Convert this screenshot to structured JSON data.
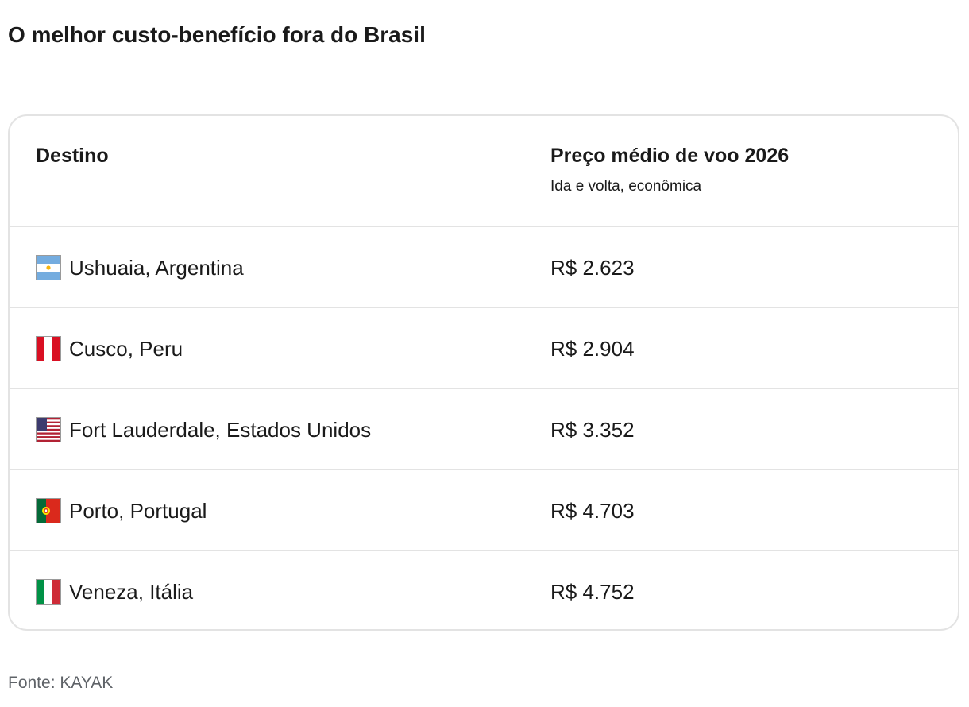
{
  "title": "O melhor custo-benefício fora do Brasil",
  "table": {
    "headers": {
      "destination": "Destino",
      "price": "Preço médio de voo 2026",
      "price_sub": "Ida e volta, econômica"
    },
    "rows": [
      {
        "flag_icon": "argentina-flag-icon",
        "destination": "Ushuaia, Argentina",
        "price": "R$ 2.623"
      },
      {
        "flag_icon": "peru-flag-icon",
        "destination": "Cusco, Peru",
        "price": "R$ 2.904"
      },
      {
        "flag_icon": "usa-flag-icon",
        "destination": "Fort Lauderdale, Estados Unidos",
        "price": "R$ 3.352"
      },
      {
        "flag_icon": "portugal-flag-icon",
        "destination": "Porto, Portugal",
        "price": "R$ 4.703"
      },
      {
        "flag_icon": "italy-flag-icon",
        "destination": "Veneza, Itália",
        "price": "R$ 4.752"
      }
    ]
  },
  "source": "Fonte: KAYAK",
  "colors": {
    "border": "#e3e3e3",
    "text": "#1a1a1a",
    "muted": "#5f6368"
  }
}
